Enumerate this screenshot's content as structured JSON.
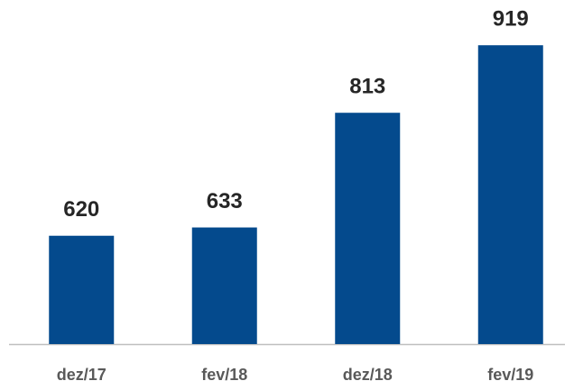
{
  "chart_data": {
    "type": "bar",
    "categories": [
      "dez/17",
      "fev/18",
      "dez/18",
      "fev/19"
    ],
    "values": [
      620,
      633,
      813,
      919
    ],
    "color": "#044a8d",
    "ylim": [
      450,
      990
    ]
  }
}
